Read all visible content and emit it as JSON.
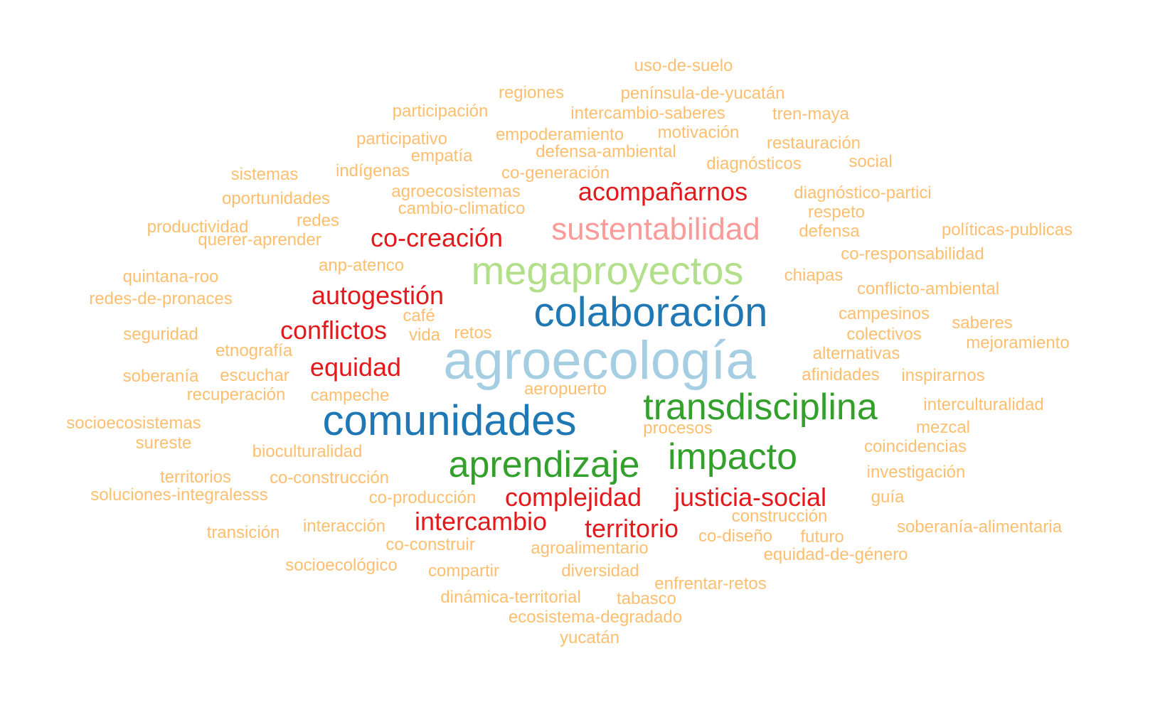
{
  "colors": {
    "light_orange": "#fdbf6f",
    "red": "#e31a1c",
    "pink": "#fb9a99",
    "light_green": "#b2df8a",
    "dark_blue": "#1f78b4",
    "light_blue": "#a6cee3",
    "green": "#33a02c"
  },
  "words": [
    {
      "text": "agroecología",
      "color": "light_blue"
    },
    {
      "text": "comunidades",
      "color": "dark_blue"
    },
    {
      "text": "colaboración",
      "color": "dark_blue"
    },
    {
      "text": "megaproyectos",
      "color": "light_green"
    },
    {
      "text": "transdisciplina",
      "color": "green"
    },
    {
      "text": "aprendizaje",
      "color": "green"
    },
    {
      "text": "impacto",
      "color": "green"
    },
    {
      "text": "sustentabilidad",
      "color": "pink"
    },
    {
      "text": "acompañarnos",
      "color": "red"
    },
    {
      "text": "co-creación",
      "color": "red"
    },
    {
      "text": "autogestión",
      "color": "red"
    },
    {
      "text": "conflictos",
      "color": "red"
    },
    {
      "text": "equidad",
      "color": "red"
    },
    {
      "text": "complejidad",
      "color": "red"
    },
    {
      "text": "justicia-social",
      "color": "red"
    },
    {
      "text": "intercambio",
      "color": "red"
    },
    {
      "text": "territorio",
      "color": "red"
    },
    {
      "text": "uso-de-suelo",
      "color": "light_orange"
    },
    {
      "text": "regiones",
      "color": "light_orange"
    },
    {
      "text": "península-de-yucatán",
      "color": "light_orange"
    },
    {
      "text": "participación",
      "color": "light_orange"
    },
    {
      "text": "intercambio-saberes",
      "color": "light_orange"
    },
    {
      "text": "tren-maya",
      "color": "light_orange"
    },
    {
      "text": "participativo",
      "color": "light_orange"
    },
    {
      "text": "empoderamiento",
      "color": "light_orange"
    },
    {
      "text": "motivación",
      "color": "light_orange"
    },
    {
      "text": "restauración",
      "color": "light_orange"
    },
    {
      "text": "empatía",
      "color": "light_orange"
    },
    {
      "text": "defensa-ambiental",
      "color": "light_orange"
    },
    {
      "text": "diagnósticos",
      "color": "light_orange"
    },
    {
      "text": "social",
      "color": "light_orange"
    },
    {
      "text": "sistemas",
      "color": "light_orange"
    },
    {
      "text": "indígenas",
      "color": "light_orange"
    },
    {
      "text": "co-generación",
      "color": "light_orange"
    },
    {
      "text": "agroecosistemas",
      "color": "light_orange"
    },
    {
      "text": "diagnóstico-partici",
      "color": "light_orange"
    },
    {
      "text": "oportunidades",
      "color": "light_orange"
    },
    {
      "text": "cambio-climatico",
      "color": "light_orange"
    },
    {
      "text": "respeto",
      "color": "light_orange"
    },
    {
      "text": "productividad",
      "color": "light_orange"
    },
    {
      "text": "redes",
      "color": "light_orange"
    },
    {
      "text": "defensa",
      "color": "light_orange"
    },
    {
      "text": "políticas-publicas",
      "color": "light_orange"
    },
    {
      "text": "querer-aprender",
      "color": "light_orange"
    },
    {
      "text": "co-responsabilidad",
      "color": "light_orange"
    },
    {
      "text": "anp-atenco",
      "color": "light_orange"
    },
    {
      "text": "quintana-roo",
      "color": "light_orange"
    },
    {
      "text": "chiapas",
      "color": "light_orange"
    },
    {
      "text": "conflicto-ambiental",
      "color": "light_orange"
    },
    {
      "text": "redes-de-pronaces",
      "color": "light_orange"
    },
    {
      "text": "campesinos",
      "color": "light_orange"
    },
    {
      "text": "café",
      "color": "light_orange"
    },
    {
      "text": "saberes",
      "color": "light_orange"
    },
    {
      "text": "seguridad",
      "color": "light_orange"
    },
    {
      "text": "vida",
      "color": "light_orange"
    },
    {
      "text": "retos",
      "color": "light_orange"
    },
    {
      "text": "colectivos",
      "color": "light_orange"
    },
    {
      "text": "mejoramiento",
      "color": "light_orange"
    },
    {
      "text": "etnografía",
      "color": "light_orange"
    },
    {
      "text": "alternativas",
      "color": "light_orange"
    },
    {
      "text": "soberanía",
      "color": "light_orange"
    },
    {
      "text": "escuchar",
      "color": "light_orange"
    },
    {
      "text": "afinidades",
      "color": "light_orange"
    },
    {
      "text": "inspirarnos",
      "color": "light_orange"
    },
    {
      "text": "recuperación",
      "color": "light_orange"
    },
    {
      "text": "campeche",
      "color": "light_orange"
    },
    {
      "text": "aeropuerto",
      "color": "light_orange"
    },
    {
      "text": "interculturalidad",
      "color": "light_orange"
    },
    {
      "text": "socioecosistemas",
      "color": "light_orange"
    },
    {
      "text": "procesos",
      "color": "light_orange"
    },
    {
      "text": "mezcal",
      "color": "light_orange"
    },
    {
      "text": "sureste",
      "color": "light_orange"
    },
    {
      "text": "bioculturalidad",
      "color": "light_orange"
    },
    {
      "text": "coincidencias",
      "color": "light_orange"
    },
    {
      "text": "territorios",
      "color": "light_orange"
    },
    {
      "text": "co-construcción",
      "color": "light_orange"
    },
    {
      "text": "investigación",
      "color": "light_orange"
    },
    {
      "text": "soluciones-integralesss",
      "color": "light_orange"
    },
    {
      "text": "co-producción",
      "color": "light_orange"
    },
    {
      "text": "guía",
      "color": "light_orange"
    },
    {
      "text": "construcción",
      "color": "light_orange"
    },
    {
      "text": "soberanía-alimentaria",
      "color": "light_orange"
    },
    {
      "text": "transición",
      "color": "light_orange"
    },
    {
      "text": "interacción",
      "color": "light_orange"
    },
    {
      "text": "co-diseño",
      "color": "light_orange"
    },
    {
      "text": "futuro",
      "color": "light_orange"
    },
    {
      "text": "co-construir",
      "color": "light_orange"
    },
    {
      "text": "agroalimentario",
      "color": "light_orange"
    },
    {
      "text": "equidad-de-género",
      "color": "light_orange"
    },
    {
      "text": "socioecológico",
      "color": "light_orange"
    },
    {
      "text": "compartir",
      "color": "light_orange"
    },
    {
      "text": "diversidad",
      "color": "light_orange"
    },
    {
      "text": "enfrentar-retos",
      "color": "light_orange"
    },
    {
      "text": "dinámica-territorial",
      "color": "light_orange"
    },
    {
      "text": "tabasco",
      "color": "light_orange"
    },
    {
      "text": "ecosistema-degradado",
      "color": "light_orange"
    },
    {
      "text": "yucatán",
      "color": "light_orange"
    }
  ]
}
